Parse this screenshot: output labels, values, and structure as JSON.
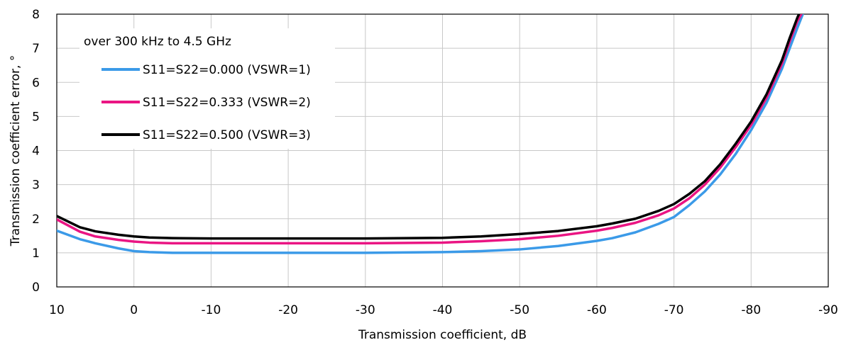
{
  "chart_data": {
    "type": "line",
    "title": "",
    "xlabel": "Transmission coefficient, dB",
    "ylabel": "Transmission coefficient error, °",
    "xlim": [
      10,
      -90
    ],
    "ylim": [
      0,
      8
    ],
    "xticks": [
      10,
      0,
      -10,
      -20,
      -30,
      -40,
      -50,
      -60,
      -70,
      -80,
      -90
    ],
    "xtick_labels": [
      "10",
      "0",
      "-10",
      "-20",
      "-30",
      "-40",
      "-50",
      "-60",
      "-70",
      "-80",
      "-90"
    ],
    "yticks": [
      0,
      1,
      2,
      3,
      4,
      5,
      6,
      7,
      8
    ],
    "ytick_labels": [
      "0",
      "1",
      "2",
      "3",
      "4",
      "5",
      "6",
      "7",
      "8"
    ],
    "grid": true,
    "legend_title": "over 300 kHz to 4.5 GHz",
    "legend_position": "top-left",
    "series": [
      {
        "name": "S11=S22=0.000 (VSWR=1)",
        "color": "#3b9ae8",
        "x": [
          10,
          7,
          5,
          2,
          0,
          -2,
          -5,
          -10,
          -20,
          -30,
          -40,
          -45,
          -50,
          -55,
          -60,
          -62,
          -65,
          -68,
          -70,
          -72,
          -74,
          -76,
          -78,
          -80,
          -82,
          -84,
          -85,
          -86,
          -86.7
        ],
        "y": [
          1.65,
          1.4,
          1.28,
          1.13,
          1.05,
          1.02,
          1.0,
          1.0,
          1.0,
          1.0,
          1.02,
          1.05,
          1.1,
          1.2,
          1.35,
          1.43,
          1.6,
          1.85,
          2.05,
          2.4,
          2.8,
          3.3,
          3.9,
          4.6,
          5.4,
          6.4,
          7.0,
          7.6,
          8.0
        ]
      },
      {
        "name": "S11=S22=0.333 (VSWR=2)",
        "color": "#ea1583",
        "x": [
          10,
          7,
          5,
          2,
          0,
          -2,
          -5,
          -10,
          -20,
          -30,
          -40,
          -45,
          -50,
          -55,
          -60,
          -62,
          -65,
          -68,
          -70,
          -72,
          -74,
          -76,
          -78,
          -80,
          -82,
          -84,
          -85,
          -86,
          -86.5
        ],
        "y": [
          1.98,
          1.62,
          1.48,
          1.38,
          1.33,
          1.3,
          1.28,
          1.28,
          1.28,
          1.28,
          1.3,
          1.34,
          1.4,
          1.5,
          1.65,
          1.73,
          1.88,
          2.1,
          2.3,
          2.6,
          3.0,
          3.5,
          4.1,
          4.75,
          5.55,
          6.55,
          7.2,
          7.8,
          8.0
        ]
      },
      {
        "name": "S11=S22=0.500 (VSWR=3)",
        "color": "#000000",
        "x": [
          10,
          7,
          5,
          2,
          0,
          -2,
          -5,
          -10,
          -20,
          -30,
          -40,
          -45,
          -50,
          -55,
          -60,
          -62,
          -65,
          -68,
          -70,
          -72,
          -74,
          -76,
          -78,
          -80,
          -82,
          -84,
          -85,
          -86,
          -86.2
        ],
        "y": [
          2.08,
          1.75,
          1.63,
          1.53,
          1.48,
          1.45,
          1.43,
          1.42,
          1.42,
          1.42,
          1.44,
          1.48,
          1.55,
          1.64,
          1.78,
          1.86,
          2.0,
          2.23,
          2.43,
          2.73,
          3.1,
          3.6,
          4.2,
          4.85,
          5.65,
          6.65,
          7.3,
          7.9,
          8.0
        ]
      }
    ]
  }
}
